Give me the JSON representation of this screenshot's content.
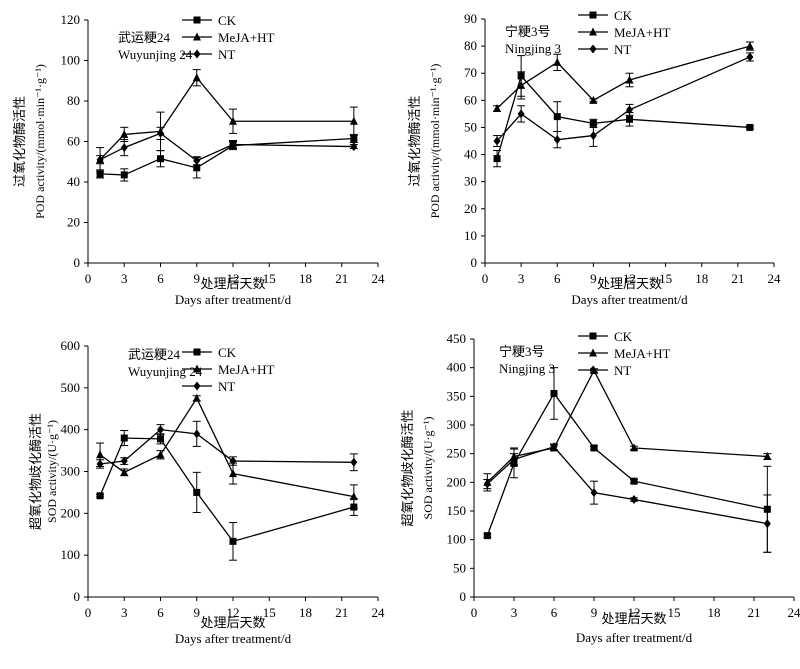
{
  "chart_data": [
    {
      "type": "line",
      "cultivar_cn": "武运粳24",
      "cultivar_en": "Wuyunjing 24",
      "ylabel_cn": "过氧化物酶活性",
      "ylabel_en": "POD activity/(mmol·min⁻¹·g⁻¹)",
      "xlabel_cn": "处理后天数",
      "xlabel_en": "Days after treatment/d",
      "x_ticks": [
        0,
        3,
        6,
        9,
        12,
        15,
        18,
        21,
        24
      ],
      "y_ticks": [
        0,
        20,
        40,
        60,
        80,
        100,
        120
      ],
      "xlim": [
        0,
        24
      ],
      "ylim": [
        0,
        120
      ],
      "x": [
        1,
        3,
        6,
        9,
        12,
        22
      ],
      "series": [
        {
          "name": "CK",
          "marker": "square",
          "values": [
            44,
            43.5,
            51.5,
            47,
            58,
            61.5
          ],
          "errors": [
            2,
            3,
            4,
            5,
            2,
            2
          ]
        },
        {
          "name": "MeJA+HT",
          "marker": "triangle",
          "values": [
            51,
            63.5,
            65,
            91.5,
            70,
            70
          ],
          "errors": [
            2,
            3.5,
            9.5,
            4,
            6,
            7
          ]
        },
        {
          "name": "NT",
          "marker": "diamond",
          "values": [
            51,
            57,
            64,
            50.5,
            58.5,
            57.5
          ],
          "errors": [
            6,
            4,
            3,
            2,
            2,
            1
          ]
        }
      ]
    },
    {
      "type": "line",
      "cultivar_cn": "宁粳3号",
      "cultivar_en": "Ningjing 3",
      "ylabel_cn": "过氧化物酶活性",
      "ylabel_en": "POD activity/(mmol·min⁻¹·g⁻¹)",
      "xlabel_cn": "处理后天数",
      "xlabel_en": "Days after treatment/d",
      "x_ticks": [
        0,
        3,
        6,
        9,
        12,
        15,
        18,
        21,
        24
      ],
      "y_ticks": [
        0,
        10,
        20,
        30,
        40,
        50,
        60,
        70,
        80,
        90
      ],
      "xlim": [
        0,
        24
      ],
      "ylim": [
        0,
        90
      ],
      "x": [
        1,
        3,
        6,
        9,
        12,
        22
      ],
      "series": [
        {
          "name": "CK",
          "marker": "square",
          "values": [
            38.5,
            69,
            54,
            51.5,
            53,
            50
          ],
          "errors": [
            3,
            7.5,
            5.5,
            1.5,
            2.5,
            0.5
          ]
        },
        {
          "name": "MeJA+HT",
          "marker": "triangle",
          "values": [
            57,
            65.5,
            74,
            60,
            67.5,
            80
          ],
          "errors": [
            1,
            5,
            3,
            0.5,
            2.5,
            1.5
          ]
        },
        {
          "name": "NT",
          "marker": "diamond",
          "values": [
            45,
            55,
            45.5,
            47,
            56.5,
            76
          ],
          "errors": [
            2,
            3,
            3,
            4,
            2,
            1.5
          ]
        }
      ]
    },
    {
      "type": "line",
      "cultivar_cn": "武运粳24",
      "cultivar_en": "Wuyunjing 24",
      "ylabel_cn": "超氧化物歧化酶活性",
      "ylabel_en": "SOD activity/(U·g⁻¹)",
      "xlabel_cn": "处理后天数",
      "xlabel_en": "Days after treatment/d",
      "x_ticks": [
        0,
        3,
        6,
        9,
        12,
        15,
        18,
        21,
        24
      ],
      "y_ticks": [
        0,
        100,
        200,
        300,
        400,
        500,
        600
      ],
      "xlim": [
        0,
        24
      ],
      "ylim": [
        0,
        600
      ],
      "x": [
        1,
        3,
        6,
        9,
        12,
        22
      ],
      "series": [
        {
          "name": "CK",
          "marker": "square",
          "values": [
            242,
            380,
            378,
            250,
            133,
            215
          ],
          "errors": [
            3,
            18,
            12,
            48,
            45,
            20
          ]
        },
        {
          "name": "MeJA+HT",
          "marker": "triangle",
          "values": [
            340,
            298,
            340,
            475,
            295,
            240
          ],
          "errors": [
            28,
            8,
            10,
            6,
            25,
            28
          ]
        },
        {
          "name": "NT",
          "marker": "diamond",
          "values": [
            318,
            325,
            400,
            390,
            325,
            322
          ],
          "errors": [
            10,
            8,
            12,
            30,
            10,
            20
          ]
        }
      ]
    },
    {
      "type": "line",
      "cultivar_cn": "宁粳3号",
      "cultivar_en": "Ningjing 3",
      "ylabel_cn": "超氧化物歧化酶活性",
      "ylabel_en": "SOD activity/(U·g⁻¹)",
      "xlabel_cn": "处理后天数",
      "xlabel_en": "Days after treatment/d",
      "x_ticks": [
        0,
        3,
        6,
        9,
        12,
        15,
        18,
        21,
        24
      ],
      "y_ticks": [
        0,
        50,
        100,
        150,
        200,
        250,
        300,
        350,
        400,
        450
      ],
      "xlim": [
        0,
        24
      ],
      "ylim": [
        0,
        450
      ],
      "x": [
        1,
        3,
        6,
        9,
        12,
        22
      ],
      "series": [
        {
          "name": "CK",
          "marker": "square",
          "values": [
            107,
            233,
            355,
            260,
            202,
            153
          ],
          "errors": [
            3,
            25,
            45,
            3,
            3,
            75
          ]
        },
        {
          "name": "MeJA+HT",
          "marker": "triangle",
          "values": [
            200,
            245,
            260,
            395,
            260,
            245
          ],
          "errors": [
            15,
            15,
            5,
            3,
            3,
            5
          ]
        },
        {
          "name": "NT",
          "marker": "diamond",
          "values": [
            197,
            240,
            262,
            182,
            170,
            128
          ],
          "errors": [
            8,
            10,
            5,
            20,
            3,
            50
          ]
        }
      ]
    }
  ]
}
